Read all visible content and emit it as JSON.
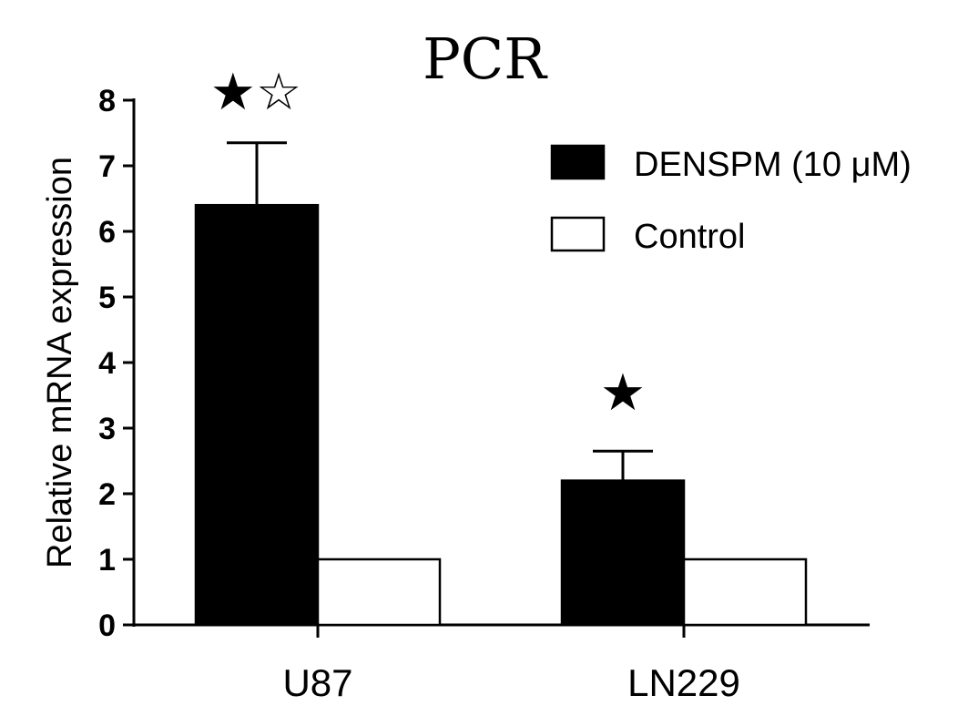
{
  "chart_data": {
    "type": "bar",
    "title": "PCR",
    "xlabel": "",
    "ylabel": "Relative mRNA expression",
    "ylim": [
      0,
      8
    ],
    "yticks": [
      0,
      1,
      2,
      3,
      4,
      5,
      6,
      7,
      8
    ],
    "categories": [
      "U87",
      "LN229"
    ],
    "series": [
      {
        "name": "DENSPM (10 μM)",
        "values": [
          6.4,
          2.2
        ],
        "error": [
          0.95,
          0.45
        ],
        "fill": "#000000"
      },
      {
        "name": "Control",
        "values": [
          1.0,
          1.0
        ],
        "error": [
          0,
          0
        ],
        "fill": "#ffffff"
      }
    ],
    "annotations": [
      {
        "category": "U87",
        "text": "★☆"
      },
      {
        "category": "LN229",
        "text": "★"
      }
    ],
    "legend_position": "top-right",
    "grid": false
  }
}
